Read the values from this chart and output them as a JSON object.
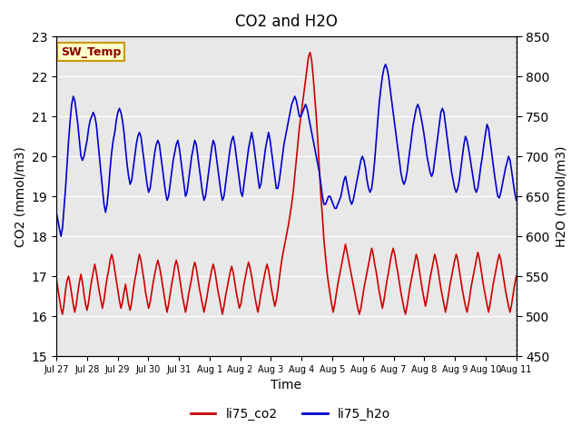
{
  "title": "CO2 and H2O",
  "xlabel": "Time",
  "ylabel_left": "CO2 (mmol/m3)",
  "ylabel_right": "H2O (mmol/m3)",
  "ylim_left": [
    15.0,
    23.0
  ],
  "ylim_right": [
    450,
    850
  ],
  "yticks_left": [
    15.0,
    16.0,
    17.0,
    18.0,
    19.0,
    20.0,
    21.0,
    22.0,
    23.0
  ],
  "yticks_right": [
    450,
    500,
    550,
    600,
    650,
    700,
    750,
    800,
    850
  ],
  "xtick_labels": [
    "Jul 27",
    "Jul 28",
    "Jul 29",
    "Jul 30",
    "Jul 31",
    "Aug 1",
    "Aug 2",
    "Aug 3",
    "Aug 4",
    "Aug 5",
    "Aug 6",
    "Aug 7",
    "Aug 8",
    "Aug 9",
    "Aug 10",
    "Aug 11"
  ],
  "color_co2": "#cc0000",
  "color_h2o": "#0000cc",
  "legend_co2": "li75_co2",
  "legend_h2o": "li75_h2o",
  "sw_temp_label": "SW_Temp",
  "bg_color": "#e8e8e8",
  "fig_bg": "#ffffff",
  "co2_data": [
    16.95,
    16.7,
    16.45,
    16.2,
    16.05,
    16.3,
    16.65,
    16.9,
    17.0,
    16.8,
    16.55,
    16.3,
    16.1,
    16.3,
    16.6,
    16.85,
    17.05,
    16.85,
    16.55,
    16.3,
    16.15,
    16.35,
    16.65,
    16.9,
    17.1,
    17.3,
    17.1,
    16.85,
    16.6,
    16.4,
    16.2,
    16.4,
    16.7,
    16.95,
    17.15,
    17.4,
    17.55,
    17.4,
    17.15,
    16.9,
    16.65,
    16.4,
    16.2,
    16.35,
    16.6,
    16.8,
    16.55,
    16.3,
    16.15,
    16.35,
    16.65,
    16.9,
    17.1,
    17.35,
    17.55,
    17.4,
    17.15,
    16.9,
    16.6,
    16.4,
    16.2,
    16.35,
    16.6,
    16.85,
    17.05,
    17.25,
    17.4,
    17.25,
    17.05,
    16.8,
    16.55,
    16.3,
    16.1,
    16.3,
    16.55,
    16.8,
    17.0,
    17.25,
    17.4,
    17.25,
    17.0,
    16.75,
    16.5,
    16.3,
    16.1,
    16.3,
    16.55,
    16.75,
    16.95,
    17.2,
    17.35,
    17.2,
    16.95,
    16.7,
    16.5,
    16.3,
    16.1,
    16.3,
    16.5,
    16.75,
    16.95,
    17.15,
    17.3,
    17.15,
    16.9,
    16.65,
    16.45,
    16.25,
    16.05,
    16.25,
    16.5,
    16.7,
    16.9,
    17.1,
    17.25,
    17.1,
    16.85,
    16.6,
    16.4,
    16.2,
    16.3,
    16.55,
    16.8,
    17.0,
    17.2,
    17.35,
    17.2,
    17.0,
    16.75,
    16.5,
    16.3,
    16.1,
    16.3,
    16.55,
    16.75,
    16.95,
    17.15,
    17.3,
    17.15,
    16.9,
    16.65,
    16.45,
    16.25,
    16.4,
    16.65,
    16.95,
    17.25,
    17.5,
    17.7,
    17.9,
    18.1,
    18.3,
    18.55,
    18.8,
    19.1,
    19.5,
    19.9,
    20.3,
    20.7,
    21.0,
    21.3,
    21.6,
    21.9,
    22.2,
    22.5,
    22.6,
    22.4,
    22.0,
    21.5,
    21.0,
    20.4,
    19.7,
    19.0,
    18.5,
    17.9,
    17.5,
    17.1,
    16.8,
    16.55,
    16.3,
    16.1,
    16.3,
    16.55,
    16.8,
    17.0,
    17.2,
    17.4,
    17.6,
    17.8,
    17.6,
    17.4,
    17.2,
    17.0,
    16.8,
    16.6,
    16.4,
    16.2,
    16.05,
    16.2,
    16.45,
    16.7,
    16.9,
    17.1,
    17.3,
    17.5,
    17.7,
    17.55,
    17.3,
    17.1,
    16.85,
    16.6,
    16.4,
    16.2,
    16.4,
    16.65,
    16.9,
    17.1,
    17.35,
    17.55,
    17.7,
    17.55,
    17.3,
    17.1,
    16.85,
    16.6,
    16.4,
    16.2,
    16.05,
    16.25,
    16.5,
    16.75,
    16.95,
    17.15,
    17.35,
    17.55,
    17.4,
    17.15,
    16.9,
    16.65,
    16.45,
    16.25,
    16.45,
    16.7,
    16.95,
    17.15,
    17.35,
    17.55,
    17.4,
    17.2,
    16.95,
    16.7,
    16.5,
    16.3,
    16.1,
    16.3,
    16.55,
    16.8,
    17.0,
    17.2,
    17.4,
    17.55,
    17.4,
    17.15,
    16.9,
    16.65,
    16.45,
    16.25,
    16.1,
    16.3,
    16.55,
    16.8,
    17.0,
    17.2,
    17.4,
    17.6,
    17.45,
    17.2,
    16.95,
    16.7,
    16.5,
    16.3,
    16.1,
    16.3,
    16.55,
    16.8,
    17.0,
    17.2,
    17.4,
    17.55,
    17.4,
    17.15,
    16.9,
    16.65,
    16.45,
    16.25,
    16.1,
    16.3,
    16.55,
    16.8,
    17.0
  ],
  "h2o_data": [
    630,
    620,
    610,
    600,
    610,
    635,
    660,
    690,
    720,
    745,
    765,
    775,
    770,
    755,
    740,
    720,
    700,
    695,
    700,
    710,
    720,
    735,
    745,
    750,
    755,
    750,
    740,
    720,
    700,
    680,
    660,
    640,
    630,
    640,
    660,
    685,
    705,
    720,
    730,
    745,
    755,
    760,
    755,
    745,
    730,
    710,
    690,
    675,
    665,
    670,
    685,
    700,
    715,
    725,
    730,
    725,
    710,
    695,
    680,
    665,
    655,
    660,
    675,
    690,
    705,
    715,
    720,
    715,
    700,
    685,
    670,
    655,
    645,
    650,
    665,
    680,
    695,
    705,
    715,
    720,
    710,
    695,
    680,
    665,
    650,
    655,
    670,
    685,
    700,
    710,
    720,
    715,
    700,
    685,
    670,
    655,
    645,
    650,
    665,
    680,
    695,
    710,
    720,
    715,
    700,
    685,
    670,
    655,
    645,
    650,
    665,
    680,
    695,
    710,
    720,
    725,
    715,
    700,
    685,
    670,
    655,
    650,
    665,
    680,
    695,
    710,
    720,
    730,
    720,
    705,
    690,
    675,
    660,
    665,
    680,
    695,
    710,
    720,
    730,
    720,
    705,
    690,
    675,
    660,
    660,
    670,
    685,
    700,
    715,
    725,
    735,
    745,
    755,
    765,
    770,
    775,
    770,
    760,
    750,
    750,
    755,
    760,
    765,
    760,
    750,
    740,
    730,
    720,
    710,
    700,
    690,
    680,
    665,
    650,
    640,
    640,
    645,
    650,
    650,
    645,
    640,
    635,
    635,
    640,
    645,
    650,
    660,
    670,
    675,
    665,
    655,
    645,
    640,
    645,
    655,
    665,
    675,
    685,
    695,
    700,
    695,
    685,
    670,
    660,
    655,
    660,
    675,
    695,
    720,
    745,
    768,
    785,
    800,
    810,
    815,
    810,
    800,
    785,
    770,
    755,
    740,
    725,
    710,
    695,
    680,
    670,
    665,
    670,
    680,
    695,
    710,
    725,
    740,
    750,
    760,
    765,
    760,
    750,
    740,
    728,
    715,
    700,
    690,
    680,
    675,
    680,
    695,
    710,
    725,
    740,
    755,
    760,
    755,
    740,
    725,
    710,
    695,
    680,
    670,
    660,
    655,
    660,
    670,
    685,
    700,
    715,
    725,
    720,
    710,
    698,
    685,
    673,
    660,
    655,
    660,
    673,
    688,
    700,
    715,
    728,
    740,
    735,
    720,
    705,
    690,
    675,
    662,
    650,
    648,
    655,
    665,
    675,
    685,
    692,
    700,
    695,
    682,
    668,
    655,
    645
  ]
}
